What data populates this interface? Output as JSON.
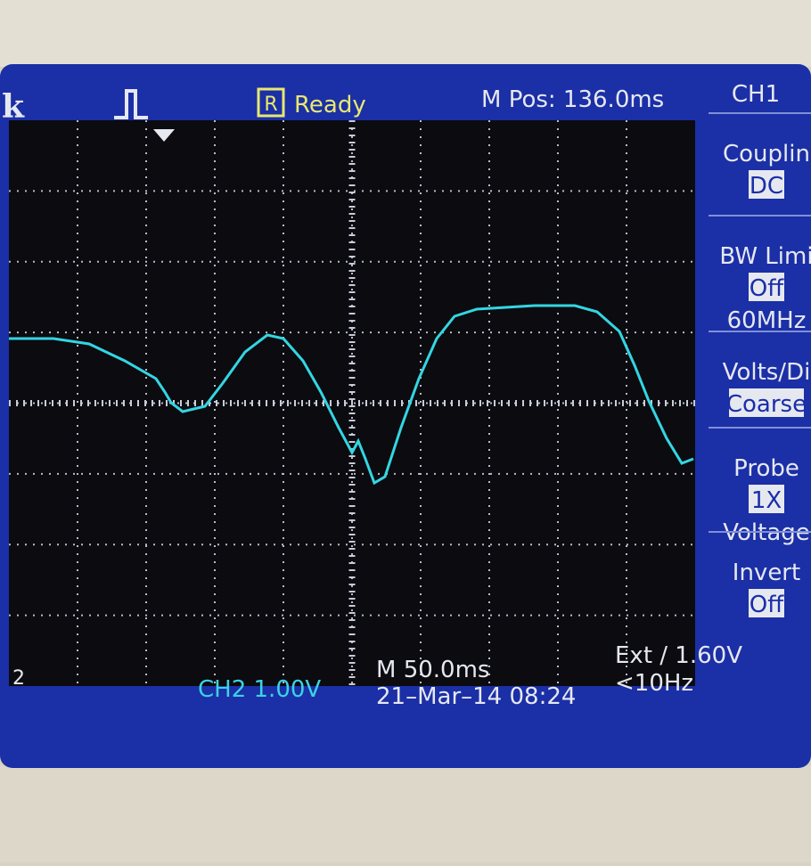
{
  "header": {
    "logo": "k",
    "run_icon": "R",
    "status": "Ready",
    "position": "M Pos: 136.0ms",
    "channel": "CH1"
  },
  "menu": [
    {
      "label": "Couplin",
      "value": "DC"
    },
    {
      "label": "BW Limi",
      "value": "Off",
      "extra": "60MHz"
    },
    {
      "label": "Volts/Di",
      "value": "Coarse"
    },
    {
      "label": "Probe",
      "value": "1X",
      "extra": "Voltage"
    },
    {
      "label": "Invert",
      "value": "Off"
    }
  ],
  "marker": "2",
  "footer": {
    "ch2": "CH2  1.00V",
    "timebase": "M 50.0ms",
    "date": "21–Mar–14 08:24",
    "trigger": "Ext ∕ 1.60V",
    "frequency": "<10Hz"
  }
}
